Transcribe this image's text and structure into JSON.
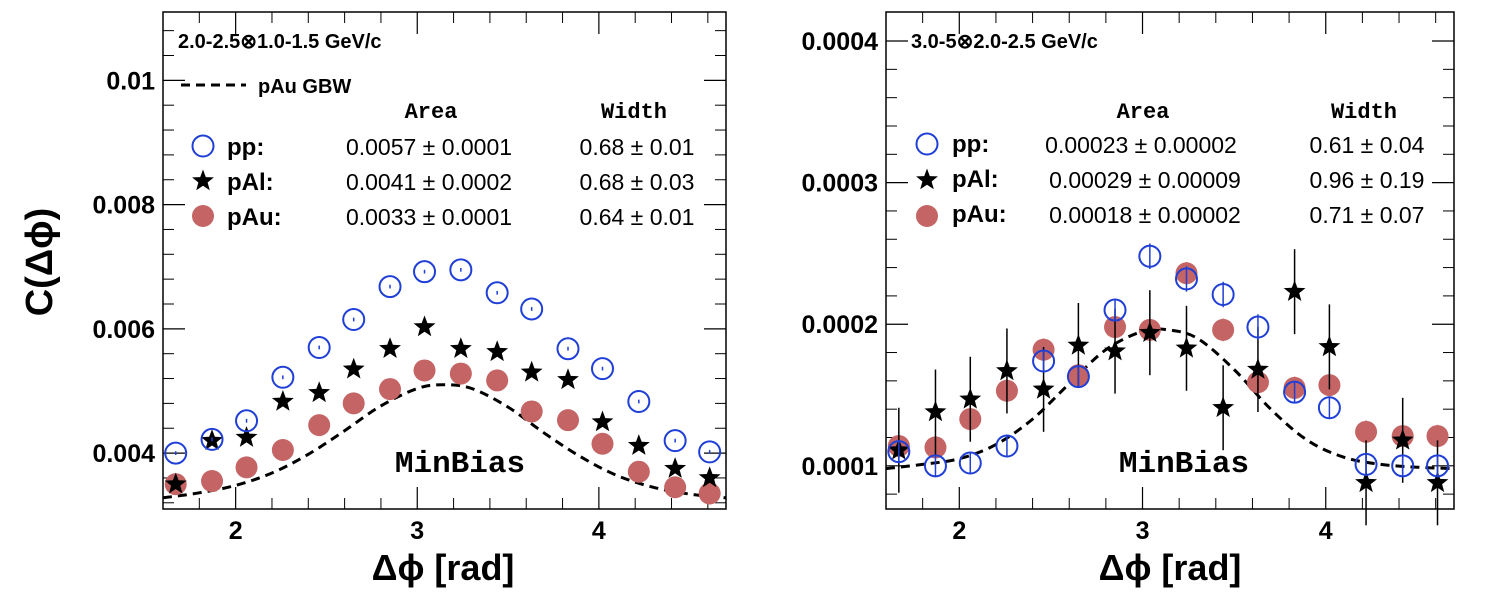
{
  "figure": {
    "ylabel": "C(Δϕ)",
    "xlabel": "Δϕ [rad]",
    "colors": {
      "pp": "#1f3fd6",
      "pAl": "#000000",
      "pAu": "#c46464",
      "fit": "#000000"
    }
  },
  "chart_data": [
    {
      "type": "scatter",
      "title": "2.0-2.5⊗1.0-1.5 GeV/c",
      "xlabel": "Δϕ [rad]",
      "ylabel": "C(Δϕ)",
      "xlim": [
        1.6,
        4.7
      ],
      "ylim": [
        0.0031,
        0.0111
      ],
      "xticks": [
        2,
        3,
        4
      ],
      "xtick_labels": [
        "2",
        "3",
        "4"
      ],
      "yticks": [
        0.004,
        0.006,
        0.008,
        0.01
      ],
      "ytick_labels": [
        "0.004",
        "0.006",
        "0.008",
        "0.01"
      ],
      "annotation": "MinBias",
      "legend_line_label": "pAu GBW",
      "legend_headers": {
        "area": "Area",
        "width": "Width"
      },
      "legend_rows": [
        {
          "key": "pp",
          "label": "pp:",
          "area": "0.0057 ± 0.0001",
          "width": "0.68 ± 0.01"
        },
        {
          "key": "pAl",
          "label": "pAl:",
          "area": "0.0041 ± 0.0002",
          "width": "0.68 ± 0.03"
        },
        {
          "key": "pAu",
          "label": "pAu:",
          "area": "0.0033 ± 0.0001",
          "width": "0.64 ± 0.01"
        }
      ],
      "x": [
        1.67,
        1.87,
        2.06,
        2.26,
        2.46,
        2.65,
        2.85,
        3.04,
        3.24,
        3.44,
        3.63,
        3.83,
        4.02,
        4.22,
        4.42,
        4.61
      ],
      "series": [
        {
          "name": "pp",
          "marker": "open-circle",
          "values": [
            0.004,
            0.00422,
            0.00452,
            0.00522,
            0.0057,
            0.00615,
            0.00668,
            0.00692,
            0.00695,
            0.00658,
            0.00632,
            0.00568,
            0.00536,
            0.00483,
            0.0042,
            0.00402
          ],
          "errors": [
            3e-05,
            3e-05,
            3e-05,
            3e-05,
            3e-05,
            3e-05,
            3e-05,
            3e-05,
            3e-05,
            3e-05,
            3e-05,
            3e-05,
            3e-05,
            3e-05,
            3e-05,
            3e-05
          ]
        },
        {
          "name": "pAl",
          "marker": "star",
          "values": [
            0.0035,
            0.0042,
            0.00425,
            0.00483,
            0.00497,
            0.00535,
            0.00568,
            0.00603,
            0.00568,
            0.00563,
            0.0053,
            0.00518,
            0.0045,
            0.00412,
            0.00375,
            0.0036
          ],
          "errors": [
            4e-05,
            4e-05,
            4e-05,
            4e-05,
            4e-05,
            4e-05,
            4e-05,
            4e-05,
            4e-05,
            4e-05,
            4e-05,
            4e-05,
            4e-05,
            4e-05,
            4e-05,
            4e-05
          ]
        },
        {
          "name": "pAu",
          "marker": "filled-circle",
          "values": [
            0.0035,
            0.00355,
            0.00377,
            0.00405,
            0.00445,
            0.0048,
            0.00503,
            0.00533,
            0.00528,
            0.00517,
            0.00467,
            0.00453,
            0.00415,
            0.0037,
            0.00345,
            0.00335
          ],
          "errors": [
            2e-05,
            2e-05,
            2e-05,
            2e-05,
            2e-05,
            2e-05,
            2e-05,
            2e-05,
            2e-05,
            2e-05,
            2e-05,
            2e-05,
            2e-05,
            2e-05,
            2e-05,
            2e-05
          ]
        }
      ],
      "fit": {
        "name": "pAu GBW",
        "x": [
          1.6,
          1.8,
          2.0,
          2.2,
          2.4,
          2.6,
          2.8,
          3.0,
          3.14,
          3.3,
          3.5,
          3.7,
          3.9,
          4.1,
          4.3,
          4.5,
          4.7
        ],
        "y": [
          0.00328,
          0.00336,
          0.00348,
          0.00368,
          0.00398,
          0.00436,
          0.00476,
          0.00504,
          0.0051,
          0.00504,
          0.00474,
          0.00432,
          0.00394,
          0.00364,
          0.00345,
          0.00334,
          0.00328
        ]
      }
    },
    {
      "type": "scatter",
      "title": "3.0-5⊗2.0-2.5 GeV/c",
      "xlabel": "Δϕ [rad]",
      "ylim": [
        6.95e-05,
        0.0004205
      ],
      "xlim": [
        1.6,
        4.7
      ],
      "xticks": [
        2,
        3,
        4
      ],
      "xtick_labels": [
        "2",
        "3",
        "4"
      ],
      "yticks": [
        0.0001,
        0.0002,
        0.0003,
        0.0004
      ],
      "ytick_labels": [
        "0.0001",
        "0.0002",
        "0.0003",
        "0.0004"
      ],
      "annotation": "MinBias",
      "legend_headers": {
        "area": "Area",
        "width": "Width"
      },
      "legend_rows": [
        {
          "key": "pp",
          "label": "pp:",
          "area": "0.00023 ± 0.00002",
          "width": "0.61 ± 0.04"
        },
        {
          "key": "pAl",
          "label": "pAl:",
          "area": "0.00029 ± 0.00009",
          "width": "0.96 ± 0.19"
        },
        {
          "key": "pAu",
          "label": "pAu:",
          "area": "0.00018 ± 0.00002",
          "width": "0.71 ± 0.07"
        }
      ],
      "x": [
        1.67,
        1.87,
        2.06,
        2.26,
        2.46,
        2.65,
        2.85,
        3.04,
        3.24,
        3.44,
        3.63,
        3.83,
        4.02,
        4.22,
        4.42,
        4.61
      ],
      "series": [
        {
          "name": "pp",
          "marker": "open-circle",
          "values": [
            0.00011,
            0.0001,
            0.000102,
            0.000114,
            0.000174,
            0.000163,
            0.00021,
            0.000248,
            0.000232,
            0.000221,
            0.000198,
            0.000152,
            0.000141,
            0.000101,
            0.0001,
            0.0001
          ],
          "errors": [
            8e-06,
            8e-06,
            8e-06,
            8e-06,
            8e-06,
            8e-06,
            8e-06,
            9e-06,
            9e-06,
            9e-06,
            9e-06,
            8e-06,
            8e-06,
            8e-06,
            8e-06,
            8e-06
          ]
        },
        {
          "name": "pAl",
          "marker": "star",
          "values": [
            0.000111,
            0.000138,
            0.000147,
            0.000167,
            0.000154,
            0.000185,
            0.000181,
            0.000194,
            0.000183,
            0.000141,
            0.000168,
            0.000223,
            0.000184,
            8.8e-05,
            0.000118,
            8.8e-05
          ],
          "errors": [
            3e-05,
            3e-05,
            3e-05,
            3e-05,
            3e-05,
            3e-05,
            3e-05,
            3e-05,
            3e-05,
            3e-05,
            3e-05,
            3e-05,
            3e-05,
            3e-05,
            3e-05,
            3e-05
          ]
        },
        {
          "name": "pAu",
          "marker": "filled-circle",
          "values": [
            0.000114,
            0.000113,
            0.000133,
            0.000153,
            0.000182,
            0.000164,
            0.000198,
            0.000196,
            0.000236,
            0.000196,
            0.000159,
            0.000155,
            0.000157,
            0.000124,
            0.000121,
            0.000121
          ],
          "errors": [
            8e-06,
            8e-06,
            8e-06,
            8e-06,
            8e-06,
            8e-06,
            8e-06,
            8e-06,
            8e-06,
            8e-06,
            8e-06,
            8e-06,
            8e-06,
            8e-06,
            8e-06,
            8e-06
          ]
        }
      ],
      "fit": {
        "name": "pAu GBW",
        "x": [
          1.6,
          1.8,
          2.0,
          2.2,
          2.4,
          2.6,
          2.8,
          3.0,
          3.14,
          3.3,
          3.5,
          3.7,
          3.9,
          4.1,
          4.3,
          4.5,
          4.7
        ],
        "y": [
          9.8e-05,
          0.000101,
          0.000105,
          0.000115,
          0.000133,
          0.000158,
          0.000182,
          0.000195,
          0.000196,
          0.00019,
          0.000168,
          0.00014,
          0.000118,
          0.000106,
          0.000101,
          9.9e-05,
          9.8e-05
        ]
      }
    }
  ]
}
